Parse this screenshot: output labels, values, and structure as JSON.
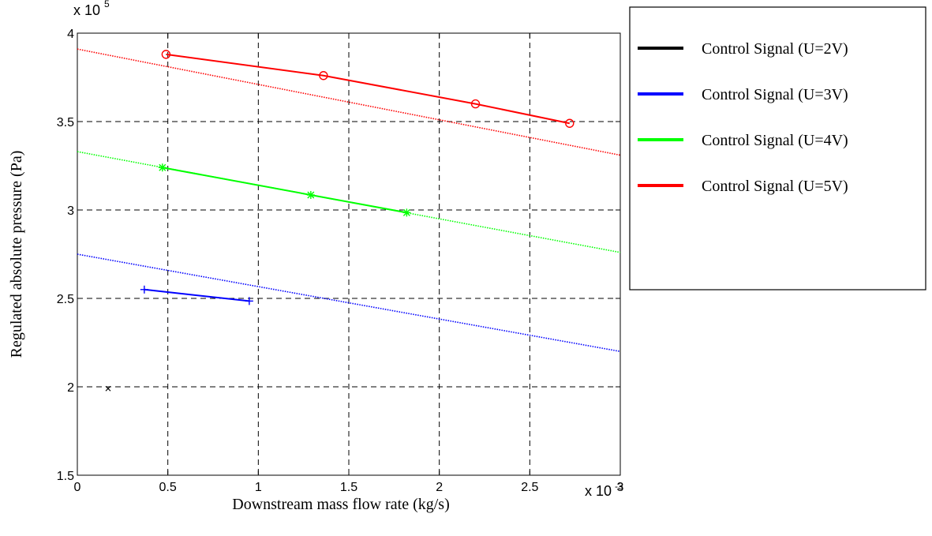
{
  "chart_data": {
    "type": "line",
    "xlabel": "Downstream mass flow rate (kg/s)",
    "ylabel": "Regulated absolute pressure (Pa)",
    "x_multiplier": "x 10",
    "x_multiplier_exp": "-3",
    "y_multiplier": "x 10",
    "y_multiplier_exp": "5",
    "xlim": [
      0,
      3
    ],
    "ylim": [
      1.5,
      4
    ],
    "x_ticks": [
      "0",
      "0.5",
      "1",
      "1.5",
      "2",
      "2.5",
      "3"
    ],
    "y_ticks": [
      "1.5",
      "2",
      "2.5",
      "3",
      "3.5",
      "4"
    ],
    "grid": true,
    "legend_position": "right",
    "series": [
      {
        "name": "Control Signal (U=2V)",
        "color": "#000000",
        "marker": "x",
        "points": [
          [
            0.17,
            1.99
          ]
        ],
        "fit": null
      },
      {
        "name": "Control Signal (U=3V)",
        "color": "#0000ff",
        "marker": "plus",
        "points": [
          [
            0.37,
            2.55
          ],
          [
            0.95,
            2.485
          ]
        ],
        "fit": [
          [
            0,
            2.75
          ],
          [
            3,
            2.2
          ]
        ]
      },
      {
        "name": "Control Signal (U=4V)",
        "color": "#00ff00",
        "marker": "star",
        "points": [
          [
            0.47,
            3.24
          ],
          [
            1.29,
            3.085
          ],
          [
            1.82,
            2.985
          ]
        ],
        "fit": [
          [
            0,
            3.33
          ],
          [
            3,
            2.76
          ]
        ]
      },
      {
        "name": "Control Signal (U=5V)",
        "color": "#ff0000",
        "marker": "circle",
        "points": [
          [
            0.49,
            3.88
          ],
          [
            1.36,
            3.76
          ],
          [
            2.2,
            3.6
          ],
          [
            2.72,
            3.49
          ]
        ],
        "fit": [
          [
            0,
            3.91
          ],
          [
            3,
            3.31
          ]
        ]
      }
    ]
  }
}
